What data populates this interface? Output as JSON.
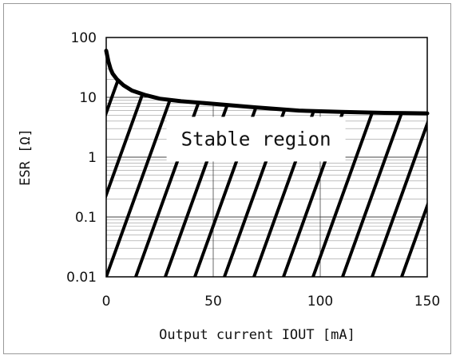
{
  "chart_data": {
    "type": "line",
    "title": "",
    "xlabel": "Output current IOUT [mA]",
    "ylabel": "ESR [Ω]",
    "x_scale": "linear",
    "y_scale": "log",
    "xlim": [
      0,
      150
    ],
    "ylim": [
      0.01,
      100
    ],
    "x_ticks": [
      "0",
      "50",
      "100",
      "150"
    ],
    "y_ticks": [
      "0.01",
      "0.1",
      "1",
      "10",
      "100"
    ],
    "grid": true,
    "series": [
      {
        "name": "",
        "x": [
          0,
          1,
          2,
          3,
          5,
          8,
          12,
          18,
          25,
          35,
          50,
          70,
          90,
          110,
          130,
          150
        ],
        "y": [
          60,
          40,
          30,
          25,
          20,
          16,
          13,
          11,
          9.5,
          8.6,
          7.8,
          6.8,
          6.0,
          5.7,
          5.5,
          5.4
        ]
      }
    ],
    "annotations": [
      {
        "text": "Stable region",
        "x": 70,
        "y": 2
      }
    ]
  },
  "colors": {
    "line": "#000000",
    "grid": "#444444",
    "hatch": "#000000"
  }
}
